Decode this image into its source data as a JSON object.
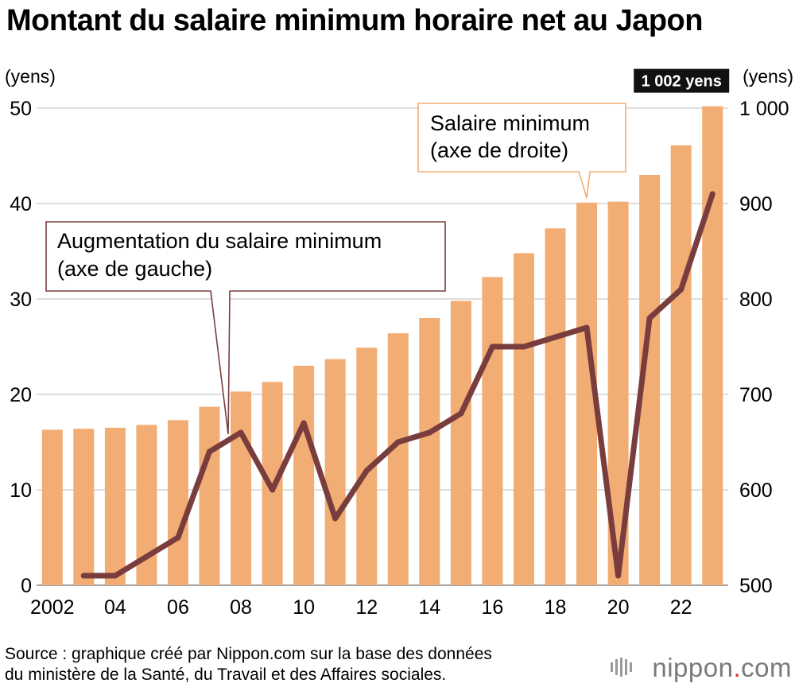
{
  "title": "Montant du salaire minimum horaire net au Japon",
  "source_line1": "Source : graphique créé par Nippon.com sur la base des données",
  "source_line2": "du ministère de la Santé, du Travail et des Affaires sociales.",
  "logo": {
    "name": "nippon",
    "dot": ".",
    "domain": "com"
  },
  "chart_data": {
    "type": "bar+line",
    "x": [
      2002,
      2003,
      2004,
      2005,
      2006,
      2007,
      2008,
      2009,
      2010,
      2011,
      2012,
      2013,
      2014,
      2015,
      2016,
      2017,
      2018,
      2019,
      2020,
      2021,
      2022,
      2023
    ],
    "x_tick_labels": [
      {
        "x": 2002,
        "label": "2002"
      },
      {
        "x": 2004,
        "label": "04"
      },
      {
        "x": 2006,
        "label": "06"
      },
      {
        "x": 2008,
        "label": "08"
      },
      {
        "x": 2010,
        "label": "10"
      },
      {
        "x": 2012,
        "label": "12"
      },
      {
        "x": 2014,
        "label": "14"
      },
      {
        "x": 2016,
        "label": "16"
      },
      {
        "x": 2018,
        "label": "18"
      },
      {
        "x": 2020,
        "label": "20"
      },
      {
        "x": 2022,
        "label": "22"
      }
    ],
    "series": [
      {
        "kind": "bar",
        "axis": "right",
        "color": "#f2ad74",
        "values": [
          663,
          664,
          665,
          668,
          673,
          687,
          703,
          713,
          730,
          737,
          749,
          764,
          780,
          798,
          823,
          848,
          874,
          901,
          902,
          930,
          961,
          1002
        ]
      },
      {
        "kind": "line",
        "axis": "left",
        "color": "#7a3d3d",
        "values": [
          null,
          1,
          1,
          3,
          5,
          14,
          16,
          10,
          17,
          7,
          12,
          15,
          16,
          18,
          25,
          25,
          26,
          27,
          1,
          28,
          31,
          41
        ]
      }
    ],
    "left_axis": {
      "unit": "(yens)",
      "ylim": [
        0,
        50
      ],
      "ticks": [
        0,
        10,
        20,
        30,
        40,
        50
      ],
      "tick_labels": [
        "0",
        "10",
        "20",
        "30",
        "40",
        "50"
      ]
    },
    "right_axis": {
      "unit": "(yens)",
      "ylim": [
        500,
        1000
      ],
      "ticks": [
        500,
        600,
        700,
        800,
        900,
        1000
      ],
      "tick_labels": [
        "500",
        "600",
        "700",
        "800",
        "900",
        "1 000"
      ]
    },
    "grid": true,
    "badge": {
      "text": "1 002 yens",
      "x": 2023
    },
    "annotations": [
      {
        "lines": [
          "Salaire minimum",
          "(axe de droite)"
        ],
        "target_series": 0,
        "target_x": 2019,
        "border": "#f2ad74"
      },
      {
        "lines": [
          "Augmentation du salaire minimum",
          "(axe de gauche)"
        ],
        "target_series": 1,
        "target_x": 2008,
        "border": "#7a3d3d"
      }
    ]
  }
}
